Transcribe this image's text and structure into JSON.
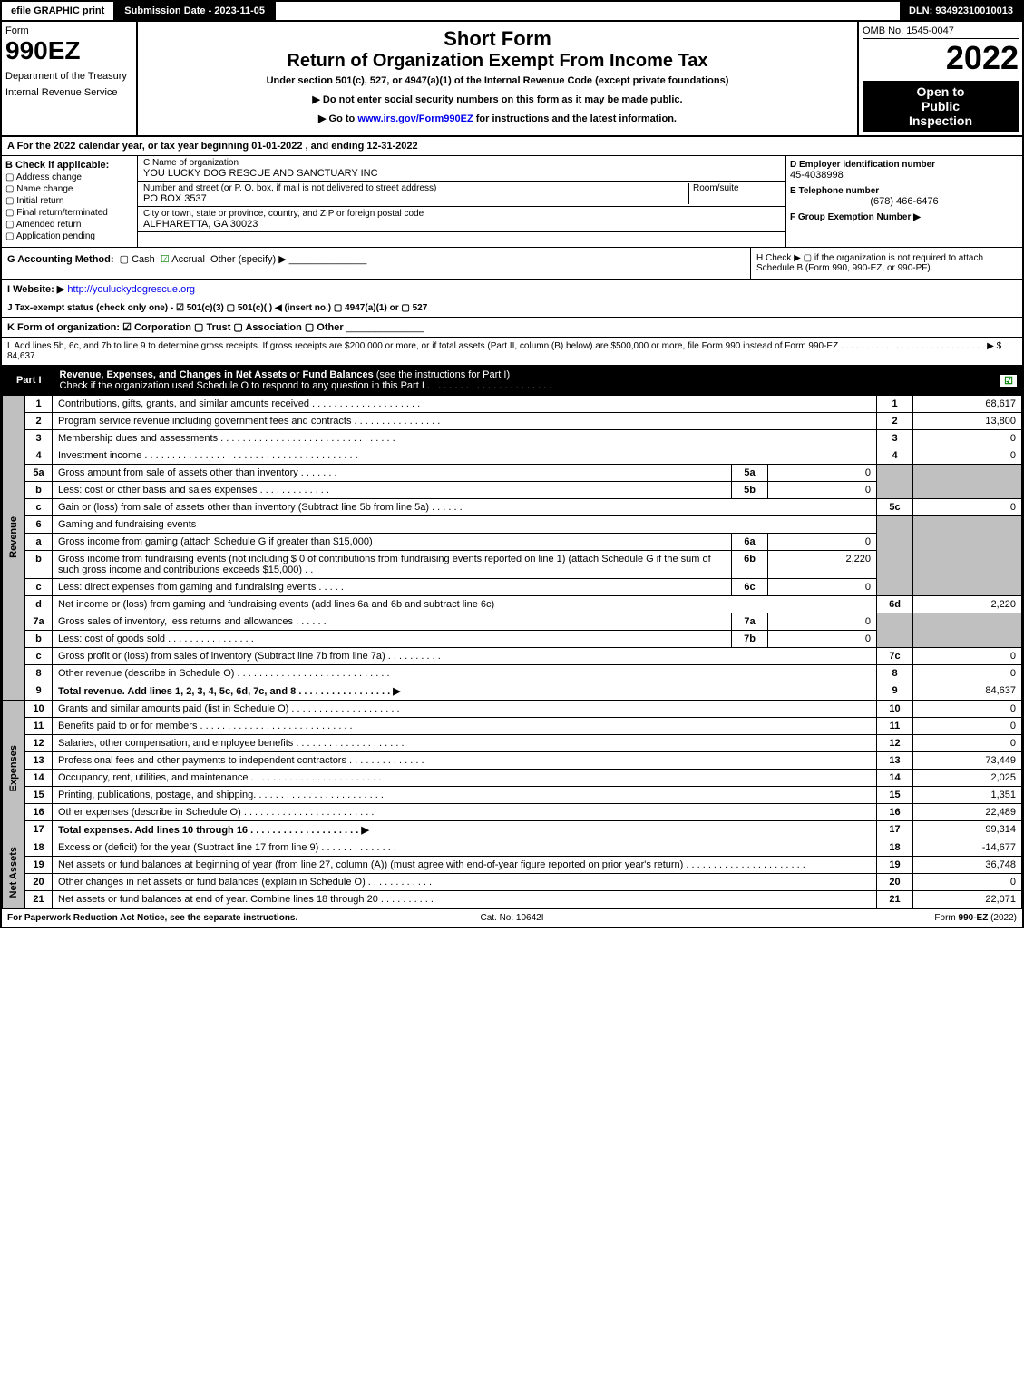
{
  "topbar": {
    "efile": "efile GRAPHIC print",
    "submission": "Submission Date - 2023-11-05",
    "dln": "DLN: 93492310010013"
  },
  "header": {
    "form_label": "Form",
    "form_number": "990EZ",
    "dept1": "Department of the Treasury",
    "dept2": "Internal Revenue Service",
    "title1": "Short Form",
    "title2": "Return of Organization Exempt From Income Tax",
    "subtitle": "Under section 501(c), 527, or 4947(a)(1) of the Internal Revenue Code (except private foundations)",
    "note1": "▶ Do not enter social security numbers on this form as it may be made public.",
    "note2": "▶ Go to www.irs.gov/Form990EZ for instructions and the latest information.",
    "note2_link": "www.irs.gov/Form990EZ",
    "omb": "OMB No. 1545-0047",
    "year": "2022",
    "inspection1": "Open to",
    "inspection2": "Public",
    "inspection3": "Inspection"
  },
  "section_a": "A  For the 2022 calendar year, or tax year beginning 01-01-2022  , and ending 12-31-2022",
  "section_b": {
    "title": "B  Check if applicable:",
    "items": [
      "Address change",
      "Name change",
      "Initial return",
      "Final return/terminated",
      "Amended return",
      "Application pending"
    ]
  },
  "section_c": {
    "name_lbl": "C Name of organization",
    "name": "YOU LUCKY DOG RESCUE AND SANCTUARY INC",
    "addr_lbl": "Number and street (or P. O. box, if mail is not delivered to street address)",
    "addr": "PO BOX 3537",
    "room_lbl": "Room/suite",
    "city_lbl": "City or town, state or province, country, and ZIP or foreign postal code",
    "city": "ALPHARETTA, GA  30023"
  },
  "section_d": {
    "ein_lbl": "D Employer identification number",
    "ein": "45-4038998",
    "tel_lbl": "E Telephone number",
    "tel": "(678) 466-6476",
    "grp_lbl": "F Group Exemption Number  ▶"
  },
  "section_g": {
    "label": "G Accounting Method:",
    "cash": "Cash",
    "accrual": "Accrual",
    "other": "Other (specify) ▶"
  },
  "section_h": {
    "text": "H  Check ▶  ▢  if the organization is not required to attach Schedule B (Form 990, 990-EZ, or 990-PF)."
  },
  "section_i": {
    "label": "I Website: ▶",
    "url": "http://youluckydogrescue.org"
  },
  "section_j": "J Tax-exempt status (check only one) - ☑ 501(c)(3)  ▢ 501(c)(  ) ◀ (insert no.)  ▢ 4947(a)(1) or  ▢ 527",
  "section_k": "K Form of organization:  ☑ Corporation   ▢ Trust   ▢ Association   ▢ Other",
  "section_l": {
    "text": "L Add lines 5b, 6c, and 7b to line 9 to determine gross receipts. If gross receipts are $200,000 or more, or if total assets (Part II, column (B) below) are $500,000 or more, file Form 990 instead of Form 990-EZ . . . . . . . . . . . . . . . . . . . . . . . . . . . . . ▶",
    "value": "$ 84,637"
  },
  "part1": {
    "label": "Part I",
    "title": "Revenue, Expenses, and Changes in Net Assets or Fund Balances",
    "subtitle": "(see the instructions for Part I)",
    "check_text": "Check if the organization used Schedule O to respond to any question in this Part I . . . . . . . . . . . . . . . . . . . . . . .",
    "check_mark": "☑"
  },
  "revenue_label": "Revenue",
  "expenses_label": "Expenses",
  "netassets_label": "Net Assets",
  "lines": {
    "l1": {
      "num": "1",
      "desc": "Contributions, gifts, grants, and similar amounts received . . . . . . . . . . . . . . . . . . . .",
      "ln": "1",
      "val": "68,617"
    },
    "l2": {
      "num": "2",
      "desc": "Program service revenue including government fees and contracts . . . . . . . . . . . . . . . .",
      "ln": "2",
      "val": "13,800"
    },
    "l3": {
      "num": "3",
      "desc": "Membership dues and assessments . . . . . . . . . . . . . . . . . . . . . . . . . . . . . . . .",
      "ln": "3",
      "val": "0"
    },
    "l4": {
      "num": "4",
      "desc": "Investment income . . . . . . . . . . . . . . . . . . . . . . . . . . . . . . . . . . . . . . .",
      "ln": "4",
      "val": "0"
    },
    "l5a": {
      "num": "5a",
      "desc": "Gross amount from sale of assets other than inventory . . . . . . .",
      "sub": "5a",
      "subval": "0"
    },
    "l5b": {
      "num": "b",
      "desc": "Less: cost or other basis and sales expenses . . . . . . . . . . . . .",
      "sub": "5b",
      "subval": "0"
    },
    "l5c": {
      "num": "c",
      "desc": "Gain or (loss) from sale of assets other than inventory (Subtract line 5b from line 5a) . . . . . .",
      "ln": "5c",
      "val": "0"
    },
    "l6": {
      "num": "6",
      "desc": "Gaming and fundraising events"
    },
    "l6a": {
      "num": "a",
      "desc": "Gross income from gaming (attach Schedule G if greater than $15,000)",
      "sub": "6a",
      "subval": "0"
    },
    "l6b": {
      "num": "b",
      "desc": "Gross income from fundraising events (not including $ 0           of contributions from fundraising events reported on line 1) (attach Schedule G if the sum of such gross income and contributions exceeds $15,000)   . .",
      "sub": "6b",
      "subval": "2,220"
    },
    "l6c": {
      "num": "c",
      "desc": "Less: direct expenses from gaming and fundraising events  . . . . .",
      "sub": "6c",
      "subval": "0"
    },
    "l6d": {
      "num": "d",
      "desc": "Net income or (loss) from gaming and fundraising events (add lines 6a and 6b and subtract line 6c)",
      "ln": "6d",
      "val": "2,220"
    },
    "l7a": {
      "num": "7a",
      "desc": "Gross sales of inventory, less returns and allowances . . . . . .",
      "sub": "7a",
      "subval": "0"
    },
    "l7b": {
      "num": "b",
      "desc": "Less: cost of goods sold     . . . . . . . . . . . . . . . .",
      "sub": "7b",
      "subval": "0"
    },
    "l7c": {
      "num": "c",
      "desc": "Gross profit or (loss) from sales of inventory (Subtract line 7b from line 7a) . . . . . . . . . .",
      "ln": "7c",
      "val": "0"
    },
    "l8": {
      "num": "8",
      "desc": "Other revenue (describe in Schedule O) . . . . . . . . . . . . . . . . . . . . . . . . . . . .",
      "ln": "8",
      "val": "0"
    },
    "l9": {
      "num": "9",
      "desc": "Total revenue. Add lines 1, 2, 3, 4, 5c, 6d, 7c, and 8  . . . . . . . . . . . . . . . . .  ▶",
      "ln": "9",
      "val": "84,637"
    },
    "l10": {
      "num": "10",
      "desc": "Grants and similar amounts paid (list in Schedule O) . . . . . . . . . . . . . . . . . . . .",
      "ln": "10",
      "val": "0"
    },
    "l11": {
      "num": "11",
      "desc": "Benefits paid to or for members   . . . . . . . . . . . . . . . . . . . . . . . . . . . .",
      "ln": "11",
      "val": "0"
    },
    "l12": {
      "num": "12",
      "desc": "Salaries, other compensation, and employee benefits . . . . . . . . . . . . . . . . . . . .",
      "ln": "12",
      "val": "0"
    },
    "l13": {
      "num": "13",
      "desc": "Professional fees and other payments to independent contractors . . . . . . . . . . . . . .",
      "ln": "13",
      "val": "73,449"
    },
    "l14": {
      "num": "14",
      "desc": "Occupancy, rent, utilities, and maintenance . . . . . . . . . . . . . . . . . . . . . . . .",
      "ln": "14",
      "val": "2,025"
    },
    "l15": {
      "num": "15",
      "desc": "Printing, publications, postage, and shipping. . . . . . . . . . . . . . . . . . . . . . . .",
      "ln": "15",
      "val": "1,351"
    },
    "l16": {
      "num": "16",
      "desc": "Other expenses (describe in Schedule O)   . . . . . . . . . . . . . . . . . . . . . . . .",
      "ln": "16",
      "val": "22,489"
    },
    "l17": {
      "num": "17",
      "desc": "Total expenses. Add lines 10 through 16    . . . . . . . . . . . . . . . . . . . .  ▶",
      "ln": "17",
      "val": "99,314"
    },
    "l18": {
      "num": "18",
      "desc": "Excess or (deficit) for the year (Subtract line 17 from line 9)     . . . . . . . . . . . . . .",
      "ln": "18",
      "val": "-14,677"
    },
    "l19": {
      "num": "19",
      "desc": "Net assets or fund balances at beginning of year (from line 27, column (A)) (must agree with end-of-year figure reported on prior year's return) . . . . . . . . . . . . . . . . . . . . . .",
      "ln": "19",
      "val": "36,748"
    },
    "l20": {
      "num": "20",
      "desc": "Other changes in net assets or fund balances (explain in Schedule O) . . . . . . . . . . . .",
      "ln": "20",
      "val": "0"
    },
    "l21": {
      "num": "21",
      "desc": "Net assets or fund balances at end of year. Combine lines 18 through 20 . . . . . . . . . .",
      "ln": "21",
      "val": "22,071"
    }
  },
  "footer": {
    "left": "For Paperwork Reduction Act Notice, see the separate instructions.",
    "center": "Cat. No. 10642I",
    "right": "Form 990-EZ (2022)"
  },
  "colors": {
    "black": "#000000",
    "white": "#ffffff",
    "grey": "#c0c0c0",
    "link": "#0000ee",
    "check": "#008000"
  }
}
